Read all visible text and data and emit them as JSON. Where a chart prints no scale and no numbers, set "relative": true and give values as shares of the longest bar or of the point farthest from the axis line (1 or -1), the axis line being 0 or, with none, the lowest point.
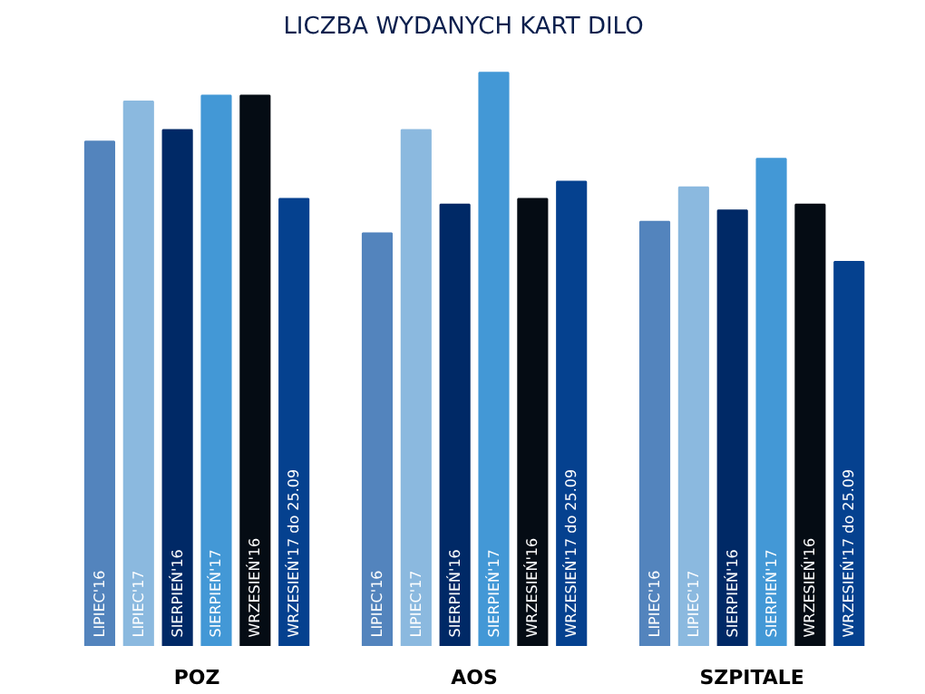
{
  "chart_data": {
    "type": "bar",
    "title": "LICZBA WYDANYCH KART DILO",
    "relative": true,
    "categories": [
      "POZ",
      "AOS",
      "SZPITALE"
    ],
    "series": [
      {
        "name": "LIPIEC'16",
        "color": "#5384bd",
        "values": [
          0.88,
          0.72,
          0.74
        ]
      },
      {
        "name": "LIPIEC'17",
        "color": "#8bb9df",
        "values": [
          0.95,
          0.9,
          0.8
        ]
      },
      {
        "name": "SIERPIEŃ'16",
        "color": "#002966",
        "values": [
          0.9,
          0.77,
          0.76
        ]
      },
      {
        "name": "SIERPIEŃ'17",
        "color": "#4398d6",
        "values": [
          0.96,
          1.0,
          0.85
        ]
      },
      {
        "name": "WRZESIEŃ'16",
        "color": "#050c14",
        "values": [
          0.96,
          0.78,
          0.77
        ]
      },
      {
        "name": "WRZESIEŃ'17 do 25.09",
        "color": "#05418f",
        "values": [
          0.78,
          0.81,
          0.67
        ]
      }
    ],
    "grid": false
  }
}
